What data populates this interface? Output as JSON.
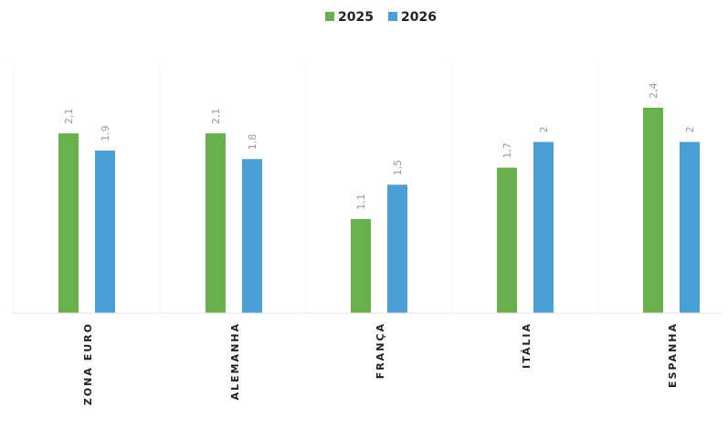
{
  "chart_data": {
    "type": "bar",
    "title": "",
    "xlabel": "",
    "ylabel": "",
    "categories": [
      "ZONA EURO",
      "ALEMANHA",
      "FRANÇA",
      "ITÁLIA",
      "ESPANHA"
    ],
    "series": [
      {
        "name": "2025",
        "color": "#6ab04c",
        "values": [
          2.1,
          2.1,
          1.1,
          1.7,
          2.4
        ],
        "labels": [
          "2,1",
          "2,1",
          "1,1",
          "1,7",
          "2,4"
        ]
      },
      {
        "name": "2026",
        "color": "#4a9fd4",
        "values": [
          1.9,
          1.8,
          1.5,
          2.0,
          2.0
        ],
        "labels": [
          "1,9",
          "1,8",
          "1,5",
          "2",
          "2"
        ]
      }
    ],
    "ylim": [
      0,
      2.4
    ],
    "legend_position": "top-center",
    "grid": false,
    "vertical_separators": true
  }
}
